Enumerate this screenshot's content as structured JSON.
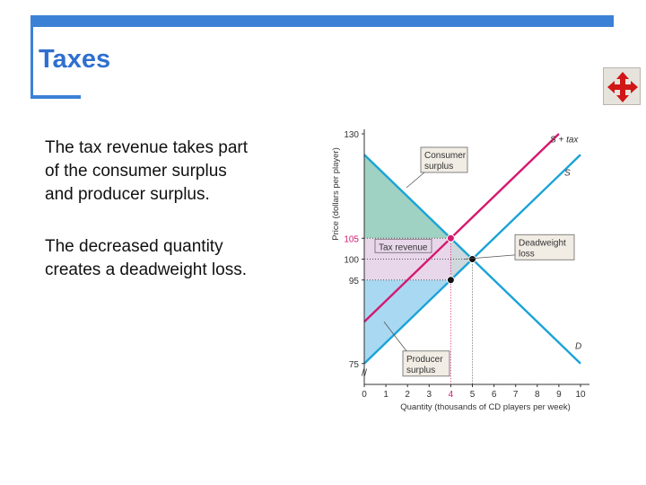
{
  "slide": {
    "title": "Taxes",
    "paragraph1": "The tax revenue takes part\nof the consumer surplus\nand producer surplus.",
    "paragraph2": "The decreased quantity\ncreates a deadweight loss.",
    "nav_icon": "move-arrows-icon"
  },
  "colors": {
    "accent": "#3b82d6",
    "title": "#2f6fd0",
    "supply_demand": "#1aa3d8",
    "supply_plus_tax": "#d6186f",
    "consumer_surplus": "#9fd2c2",
    "producer_surplus": "#a9d8f2",
    "tax_revenue": "#e8d6ea"
  },
  "chart_data": {
    "type": "line",
    "xlabel": "Quantity (thousands of CD players per week)",
    "ylabel": "Price (dollars per player)",
    "x_ticks": [
      0,
      1,
      2,
      3,
      4,
      5,
      6,
      7,
      8,
      9,
      10
    ],
    "y_ticks": [
      75,
      95,
      100,
      105,
      130
    ],
    "highlight_x": 4,
    "xlim": [
      0,
      10
    ],
    "ylim": [
      70,
      130
    ],
    "series": [
      {
        "name": "S + tax",
        "x": [
          0,
          10
        ],
        "y": [
          85,
          135
        ]
      },
      {
        "name": "S",
        "x": [
          0,
          10
        ],
        "y": [
          75,
          125
        ]
      },
      {
        "name": "D",
        "x": [
          0,
          10
        ],
        "y": [
          125,
          75
        ]
      }
    ],
    "points": [
      {
        "x": 4,
        "y": 105
      },
      {
        "x": 5,
        "y": 100
      },
      {
        "x": 4,
        "y": 95
      }
    ],
    "annotations": [
      {
        "label": "Consumer surplus"
      },
      {
        "label": "Tax revenue"
      },
      {
        "label": "Deadweight loss"
      },
      {
        "label": "Producer surplus"
      }
    ],
    "axis_break": "//"
  }
}
